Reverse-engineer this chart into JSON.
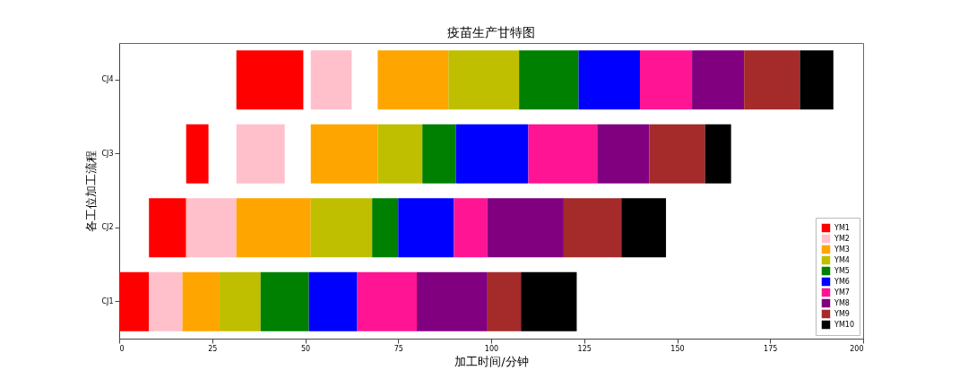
{
  "chart_data": {
    "type": "bar",
    "orientation": "horizontal",
    "title": "疫苗生产甘特图",
    "xlabel": "加工时间/分钟",
    "ylabel": "各工位加工流程",
    "categories": [
      "CJ4",
      "CJ3",
      "CJ2",
      "CJ1"
    ],
    "xlim": [
      0,
      200
    ],
    "xticks": [
      0,
      25,
      50,
      75,
      100,
      125,
      150,
      175,
      200
    ],
    "grid": false,
    "legend": "bottom right",
    "series": [
      {
        "name": "YM1",
        "color": "#ff0000",
        "base": [
          31.5,
          18,
          8,
          0
        ],
        "values": [
          18,
          6,
          10,
          8
        ]
      },
      {
        "name": "YM2",
        "color": "#ffc0cb",
        "base": [
          51.5,
          31.5,
          18,
          8
        ],
        "values": [
          11,
          13,
          13.5,
          9
        ]
      },
      {
        "name": "YM3",
        "color": "#ffa500",
        "base": [
          69.5,
          51.5,
          31.5,
          17
        ],
        "values": [
          19,
          18,
          20,
          10
        ]
      },
      {
        "name": "YM4",
        "color": "#bfbf00",
        "base": [
          88.5,
          69.5,
          51.5,
          27
        ],
        "values": [
          19,
          12,
          16.5,
          11
        ]
      },
      {
        "name": "YM5",
        "color": "#008000",
        "base": [
          107.5,
          81.5,
          68,
          38
        ],
        "values": [
          16,
          9,
          7,
          13
        ]
      },
      {
        "name": "YM6",
        "color": "#0000ff",
        "base": [
          123.5,
          90.5,
          75,
          51
        ],
        "values": [
          16.5,
          19.5,
          15,
          13
        ]
      },
      {
        "name": "YM7",
        "color": "#ff1493",
        "base": [
          140,
          110,
          90,
          64
        ],
        "values": [
          14,
          18.5,
          9,
          16
        ]
      },
      {
        "name": "YM8",
        "color": "#800080",
        "base": [
          154,
          128.5,
          99,
          80
        ],
        "values": [
          14,
          14,
          20.5,
          19
        ]
      },
      {
        "name": "YM9",
        "color": "#a52a2a",
        "base": [
          168,
          142.5,
          119.5,
          99
        ],
        "values": [
          15,
          15,
          15.5,
          9
        ]
      },
      {
        "name": "YM10",
        "color": "#000000",
        "base": [
          183,
          157.5,
          135,
          108
        ],
        "values": [
          9,
          7,
          12,
          15
        ]
      }
    ]
  }
}
